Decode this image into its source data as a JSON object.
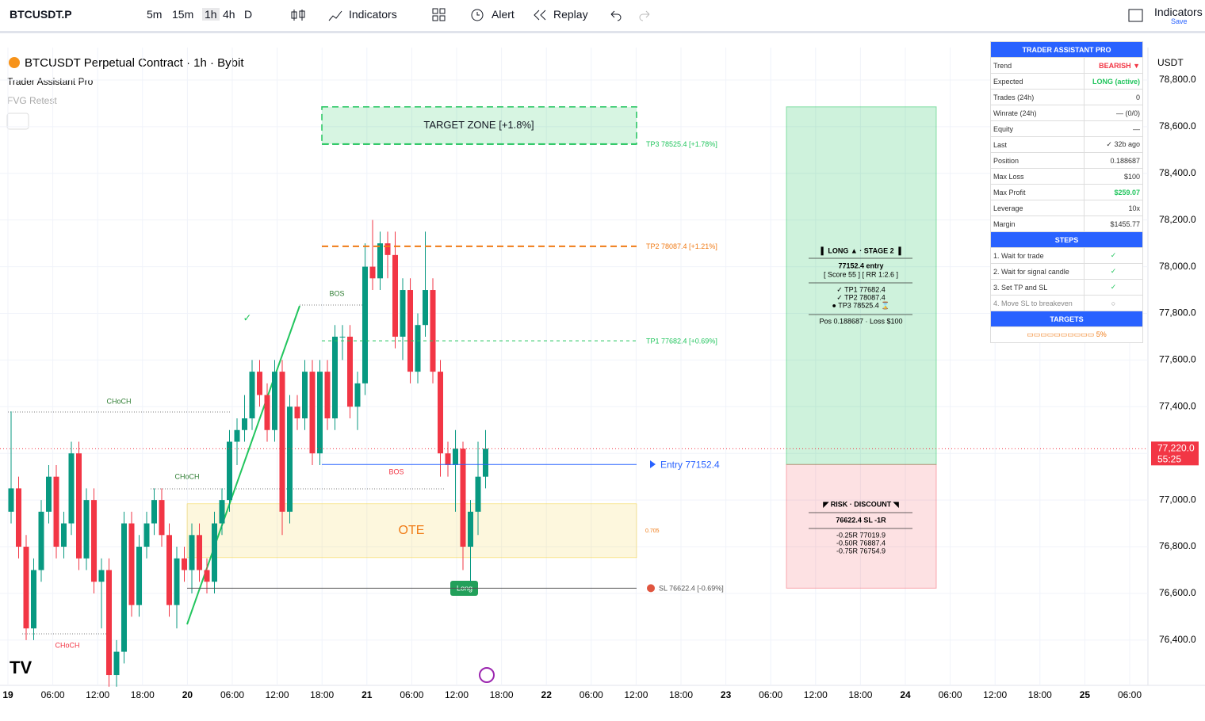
{
  "toolbar": {
    "symbol": "BTCUSDT.P",
    "intervals": [
      "5m",
      "15m",
      "1h",
      "4h",
      "D"
    ],
    "indicators": "Indicators",
    "alert": "Alert",
    "replay": "Replay",
    "right_label": "Indicators",
    "right_sub": "Save"
  },
  "chart_data": {
    "type": "candlestick",
    "title": "BTCUSDT Perpetual Contract · 1h · Bybit",
    "indicator_names": [
      "Trader Assistant Pro",
      "FVG Retest"
    ],
    "currency": "USDT",
    "x": [
      "19",
      "06:00",
      "12:00",
      "18:00",
      "20",
      "06:00",
      "12:00",
      "18:00",
      "21",
      "06:00",
      "12:00",
      "18:00",
      "22",
      "06:00",
      "12:00",
      "18:00",
      "23",
      "06:00",
      "12:00",
      "18:00",
      "24",
      "06:00",
      "12:00",
      "18:00",
      "25",
      "06:00"
    ],
    "ohlc": [
      [
        76950,
        77380,
        76900,
        77050
      ],
      [
        77050,
        77100,
        76750,
        76800
      ],
      [
        76800,
        76850,
        76400,
        76450
      ],
      [
        76450,
        76750,
        76400,
        76700
      ],
      [
        76700,
        77000,
        76650,
        76950
      ],
      [
        76950,
        77150,
        76900,
        77100
      ],
      [
        77100,
        77150,
        76750,
        76800
      ],
      [
        76800,
        76950,
        76750,
        76900
      ],
      [
        76900,
        77250,
        76850,
        77200
      ],
      [
        77200,
        77250,
        76700,
        76750
      ],
      [
        76750,
        77050,
        76700,
        77000
      ],
      [
        77000,
        77050,
        76600,
        76650
      ],
      [
        76650,
        76750,
        76450,
        76700
      ],
      [
        76700,
        76750,
        76200,
        76250
      ],
      [
        76250,
        76400,
        76200,
        76350
      ],
      [
        76350,
        76950,
        76300,
        76900
      ],
      [
        76900,
        76950,
        76500,
        76550
      ],
      [
        76550,
        76850,
        76500,
        76800
      ],
      [
        76800,
        76950,
        76750,
        76900
      ],
      [
        76900,
        77050,
        76850,
        77000
      ],
      [
        77000,
        77050,
        76800,
        76850
      ],
      [
        76850,
        76900,
        76500,
        76550
      ],
      [
        76550,
        76800,
        76450,
        76750
      ],
      [
        76750,
        76800,
        76650,
        76700
      ],
      [
        76700,
        76900,
        76600,
        76850
      ],
      [
        76850,
        76900,
        76650,
        76700
      ],
      [
        76700,
        76750,
        76600,
        76650
      ],
      [
        76650,
        76950,
        76600,
        76900
      ],
      [
        76900,
        77050,
        76850,
        77000
      ],
      [
        77000,
        77300,
        76950,
        77250
      ],
      [
        77250,
        77350,
        77150,
        77300
      ],
      [
        77300,
        77450,
        77250,
        77350
      ],
      [
        77350,
        77600,
        77300,
        77550
      ],
      [
        77550,
        77600,
        77400,
        77450
      ],
      [
        77450,
        77500,
        77250,
        77300
      ],
      [
        77300,
        77600,
        77250,
        77550
      ],
      [
        77550,
        77600,
        76850,
        76950
      ],
      [
        76950,
        77450,
        76900,
        77400
      ],
      [
        77400,
        77450,
        77300,
        77350
      ],
      [
        77350,
        77600,
        77300,
        77550
      ],
      [
        77550,
        77600,
        77150,
        77200
      ],
      [
        77200,
        77600,
        77150,
        77550
      ],
      [
        77550,
        77600,
        77300,
        77350
      ],
      [
        77350,
        77750,
        77300,
        77700
      ],
      [
        77700,
        77750,
        77600,
        77700
      ],
      [
        77700,
        77750,
        77350,
        77400
      ],
      [
        77400,
        77550,
        77300,
        77500
      ],
      [
        77500,
        78100,
        77450,
        78000
      ],
      [
        78000,
        78200,
        77900,
        77950
      ],
      [
        77950,
        78150,
        77900,
        78100
      ],
      [
        78100,
        78150,
        77950,
        78050
      ],
      [
        78050,
        78150,
        77650,
        77700
      ],
      [
        77700,
        77950,
        77600,
        77900
      ],
      [
        77900,
        77950,
        77500,
        77550
      ],
      [
        77550,
        77800,
        77500,
        77750
      ],
      [
        77750,
        78150,
        77700,
        77900
      ],
      [
        77900,
        77950,
        77500,
        77550
      ],
      [
        77550,
        77600,
        77100,
        77200
      ],
      [
        77200,
        77250,
        77100,
        77150
      ],
      [
        77150,
        77300,
        76950,
        77220
      ],
      [
        77220,
        77250,
        76700,
        76800
      ],
      [
        76800,
        77000,
        76650,
        76950
      ],
      [
        76950,
        77250,
        76850,
        77100
      ],
      [
        77100,
        77300,
        77050,
        77220
      ]
    ],
    "up_color": "#089981",
    "down_color": "#f23645",
    "ylim": [
      76206,
      78939
    ],
    "yticks": [
      {
        "value": 76400,
        "label": "76,400.0"
      },
      {
        "value": 76600,
        "label": "76,600.0"
      },
      {
        "value": 76800,
        "label": "76,800.0"
      },
      {
        "value": 77000,
        "label": "77,000.0"
      },
      {
        "value": 77200,
        "label": "77,200.0"
      },
      {
        "value": 77400,
        "label": "77,400.0"
      },
      {
        "value": 77600,
        "label": "77,600.0"
      },
      {
        "value": 77800,
        "label": "77,800.0"
      },
      {
        "value": 78000,
        "label": "78,000.0"
      },
      {
        "value": 78200,
        "label": "78,200.0"
      },
      {
        "value": 78400,
        "label": "78,400.0"
      },
      {
        "value": 78600,
        "label": "78,600.0"
      },
      {
        "value": 78800,
        "label": "78,800.0"
      }
    ],
    "grid": true,
    "last_price": {
      "value": 77220,
      "label": "77,220.0"
    },
    "countdown": "55:25",
    "levels": [
      {
        "label": "TP3 78525.4 [+1.78%]",
        "value": 78525.4,
        "color": "#22c55e"
      },
      {
        "label": "TP2 78087.4 [+1.21%]",
        "value": 78087.4,
        "color": "#f07b16"
      },
      {
        "label": "TP1 77682.4 [+0.69%]",
        "value": 77682.4,
        "color": "#22c55e"
      },
      {
        "label": "Entry 77152.4",
        "value": 77152.4,
        "color": "#2962ff"
      },
      {
        "label": "SL 76622.4 [-0.69%]",
        "value": 76622.4,
        "color": "#555555"
      }
    ],
    "zones": [
      {
        "label": "TARGET ZONE [+1.8%]",
        "top": 78685,
        "bottom": 78525.4,
        "color": "#22c55e"
      },
      {
        "label": "OTE",
        "top": 76984,
        "bottom": 76753,
        "color": "#f5d442"
      }
    ],
    "fib_label": "0.705",
    "structure_labels": [
      "BOS",
      "BOS",
      "CHoCH",
      "CHoCH",
      "CHoCH",
      "Long",
      "✓"
    ],
    "position_box": {
      "target": 78685,
      "entry": 77152.4,
      "stop": 76622.4,
      "long_lines": [
        "▌ LONG ▲ · STAGE 2 ▐",
        "77152.4  entry",
        "[ Score 55 ]  [ RR 1:2.6 ]",
        "✓ TP1   77682.4",
        "✓ TP2   78087.4",
        "● TP3   78525.4 ⌛",
        "Pos 0.188687 · Loss $100"
      ],
      "risk_lines": [
        "◤ RISK · DISCOUNT ◥",
        "76622.4 SL  -1R",
        "-0.25R  77019.9",
        "-0.50R  76887.4",
        "-0.75R  76754.9"
      ]
    }
  },
  "panel": {
    "title": "TRADER ASSISTANT PRO",
    "rows": [
      [
        "Trend",
        "BEARISH ▼"
      ],
      [
        "Expected",
        "LONG (active)"
      ],
      [
        "Trades (24h)",
        "0"
      ],
      [
        "Winrate (24h)",
        "— (0/0)"
      ],
      [
        "Equity",
        "—"
      ],
      [
        "Last",
        "✓ 32b ago"
      ],
      [
        "Position",
        "0.188687"
      ],
      [
        "Max Loss",
        "$100"
      ],
      [
        "Max Profit",
        "$259.07"
      ],
      [
        "Leverage",
        "10x"
      ],
      [
        "Margin",
        "$1455.77"
      ]
    ],
    "steps_title": "STEPS",
    "steps": [
      [
        "1. Wait for trade",
        "✓"
      ],
      [
        "2. Wait for signal candle",
        "✓"
      ],
      [
        "3. Set TP and SL",
        "✓"
      ],
      [
        "4. Move SL to breakeven",
        "○"
      ]
    ],
    "targets_title": "TARGETS",
    "targets_bar": "▭▭▭▭▭▭▭▭▭▭ 5%"
  }
}
